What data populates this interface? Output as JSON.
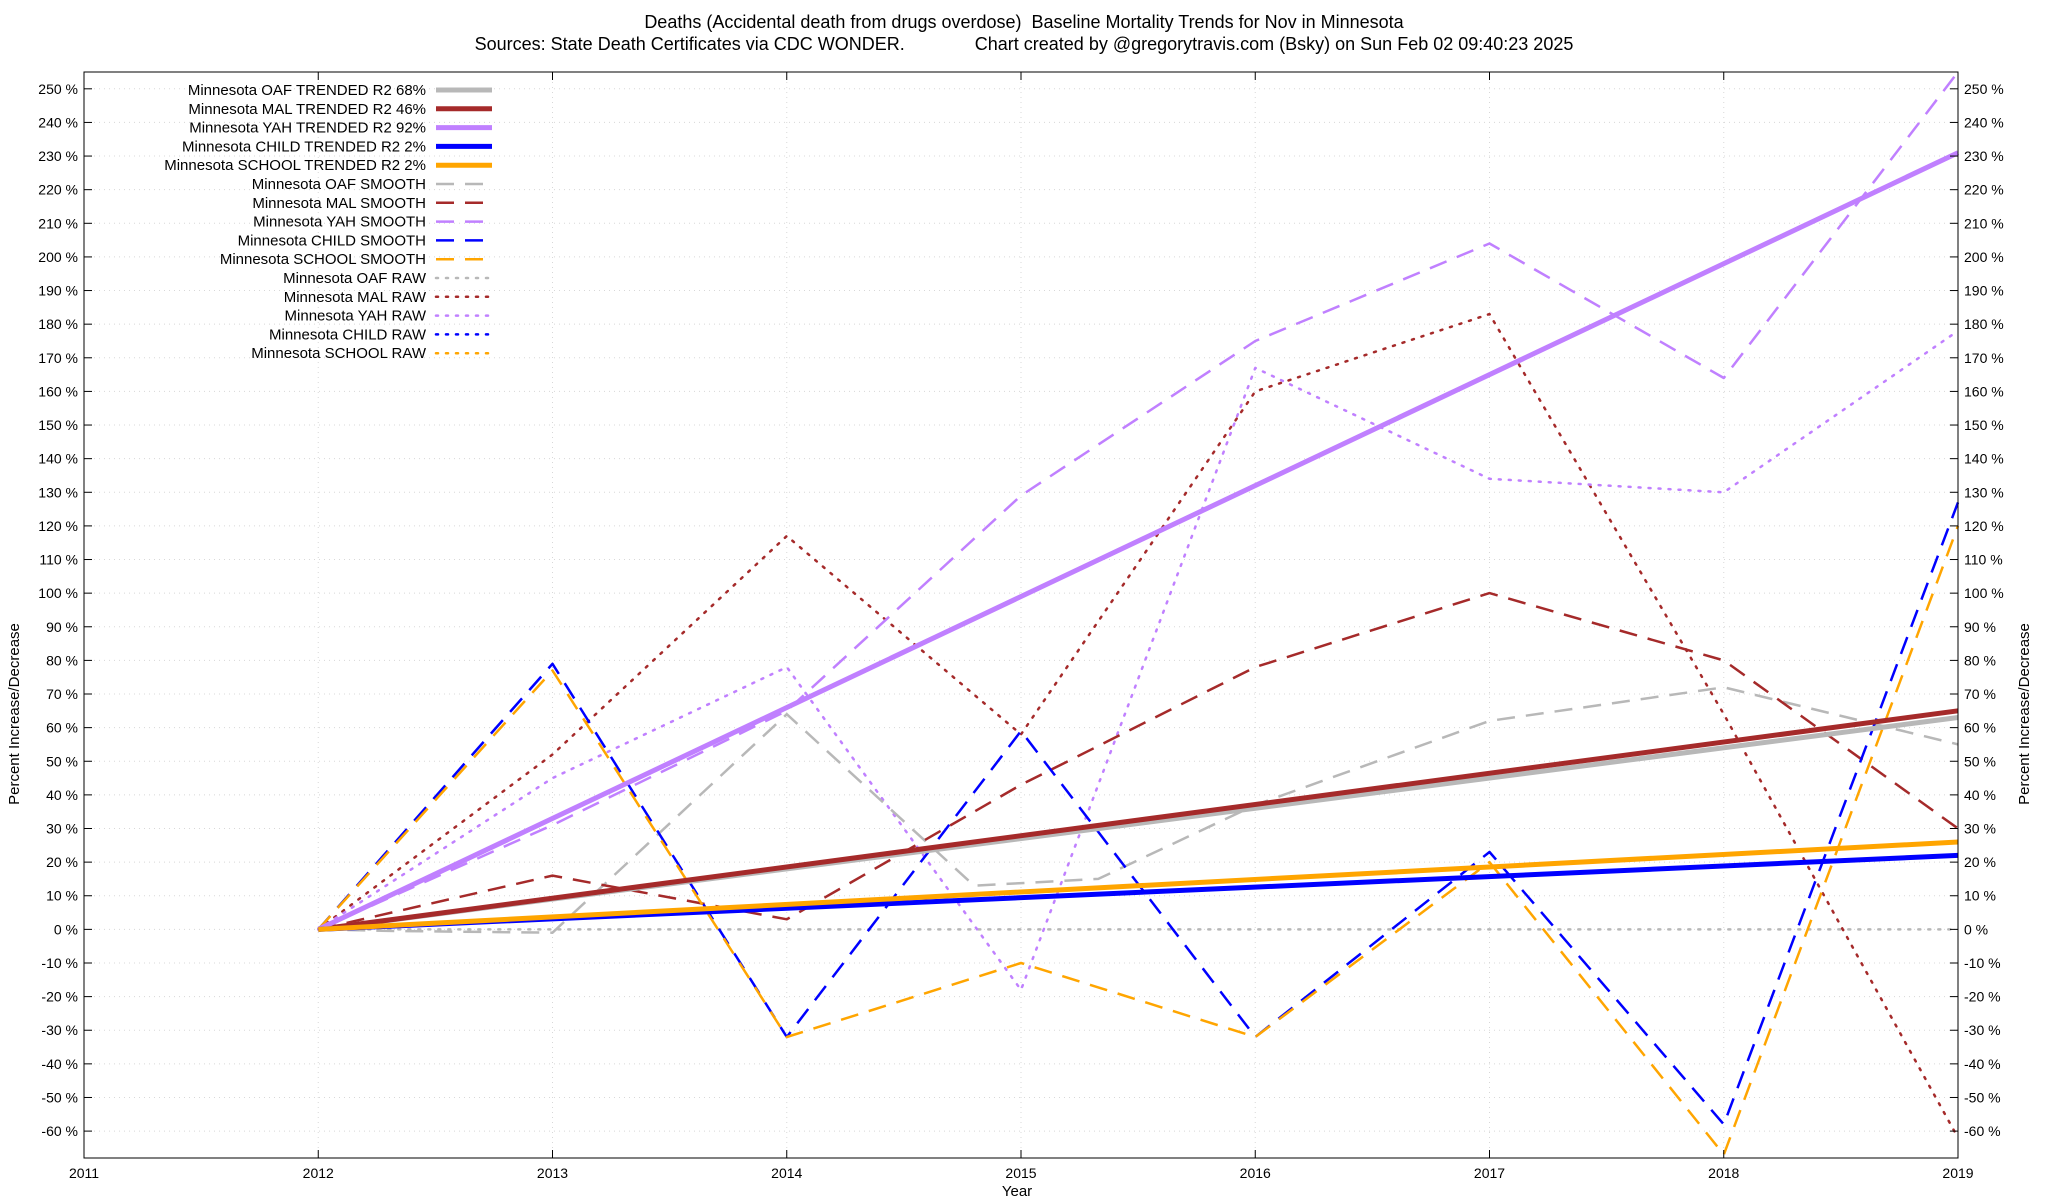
{
  "chart_data": {
    "type": "line",
    "title": "Deaths (Accidental death from drugs overdose)  Baseline Mortality Trends for Nov in Minnesota",
    "subtitle": "Sources: State Death Certificates via CDC WONDER.              Chart created by @gregorytravis.com (Bsky) on Sun Feb 02 09:40:23 2025",
    "xlabel": "Year",
    "ylabel": "Percent Increase/Decrease",
    "y2label": "Percent Increase/Decrease",
    "xlim": [
      2011,
      2019
    ],
    "ylim": [
      -68,
      255
    ],
    "x_ticks": [
      "2011",
      "2012",
      "2013",
      "2014",
      "2015",
      "2016",
      "2017",
      "2018",
      "2019"
    ],
    "y_ticks": [
      "-60 %",
      "-50 %",
      "-40 %",
      "-30 %",
      "-20 %",
      "-10 %",
      "0 %",
      "10 %",
      "20 %",
      "30 %",
      "40 %",
      "50 %",
      "60 %",
      "70 %",
      "80 %",
      "90 %",
      "100 %",
      "110 %",
      "120 %",
      "130 %",
      "140 %",
      "150 %",
      "160 %",
      "170 %",
      "180 %",
      "190 %",
      "200 %",
      "210 %",
      "220 %",
      "230 %",
      "240 %",
      "250 %"
    ],
    "grid": true,
    "legend_position": "top-left",
    "series": [
      {
        "name": "Minnesota OAF TRENDED R2  68%",
        "style": "trend",
        "color": "#b8b8b8",
        "x": [
          2012,
          2019
        ],
        "y": [
          0,
          63
        ]
      },
      {
        "name": "Minnesota MAL TRENDED R2  46%",
        "style": "trend",
        "color": "#a52a2a",
        "x": [
          2012,
          2019
        ],
        "y": [
          0,
          65
        ]
      },
      {
        "name": "Minnesota YAH TRENDED R2  92%",
        "style": "trend",
        "color": "#c080ff",
        "x": [
          2012,
          2019
        ],
        "y": [
          0,
          231
        ]
      },
      {
        "name": "Minnesota CHILD TRENDED R2   2%",
        "style": "trend",
        "color": "#0000ff",
        "x": [
          2012,
          2019
        ],
        "y": [
          0,
          22
        ]
      },
      {
        "name": "Minnesota SCHOOL TRENDED R2   2%",
        "style": "trend",
        "color": "#ffa500",
        "x": [
          2012,
          2019
        ],
        "y": [
          0,
          26
        ]
      },
      {
        "name": "Minnesota OAF SMOOTH",
        "style": "smooth",
        "color": "#b8b8b8",
        "x": [
          2012,
          2012.33,
          2013,
          2014,
          2014.8,
          2015.33,
          2016,
          2017,
          2018,
          2019
        ],
        "y": [
          0,
          -0.5,
          -1,
          64,
          13,
          15,
          37,
          62,
          72,
          55
        ]
      },
      {
        "name": "Minnesota MAL SMOOTH",
        "style": "smooth",
        "color": "#a52a2a",
        "x": [
          2012,
          2013,
          2014,
          2015,
          2016,
          2017,
          2018,
          2019
        ],
        "y": [
          0,
          16,
          3,
          43,
          78,
          100,
          80,
          30
        ]
      },
      {
        "name": "Minnesota YAH SMOOTH",
        "style": "smooth",
        "color": "#c080ff",
        "x": [
          2012,
          2013,
          2014,
          2015,
          2016,
          2017,
          2018,
          2019
        ],
        "y": [
          0,
          31,
          65,
          129,
          175,
          204,
          164,
          255
        ]
      },
      {
        "name": "Minnesota CHILD SMOOTH",
        "style": "smooth",
        "color": "#0000ff",
        "x": [
          2012,
          2013,
          2014,
          2015,
          2016,
          2017,
          2018,
          2019
        ],
        "y": [
          0,
          79,
          -32,
          59,
          -32,
          23,
          -58,
          127
        ]
      },
      {
        "name": "Minnesota SCHOOL SMOOTH",
        "style": "smooth",
        "color": "#ffa500",
        "x": [
          2012,
          2013,
          2014,
          2015,
          2016,
          2017,
          2018,
          2019
        ],
        "y": [
          0,
          77,
          -32,
          -10,
          -32,
          20,
          -67,
          120
        ]
      },
      {
        "name": "Minnesota OAF RAW",
        "style": "raw",
        "color": "#b8b8b8",
        "x": [
          2012,
          2019
        ],
        "y": [
          0,
          0
        ]
      },
      {
        "name": "Minnesota MAL RAW",
        "style": "raw",
        "color": "#a52a2a",
        "x": [
          2012,
          2013,
          2014,
          2015,
          2016,
          2017,
          2018,
          2019
        ],
        "y": [
          0,
          52,
          117,
          58,
          160,
          183,
          64,
          -62
        ]
      },
      {
        "name": "Minnesota YAH RAW",
        "style": "raw",
        "color": "#c080ff",
        "x": [
          2012,
          2013,
          2014,
          2015,
          2016,
          2017,
          2018,
          2019
        ],
        "y": [
          0,
          45,
          78,
          -18,
          167,
          134,
          130,
          178
        ]
      },
      {
        "name": "Minnesota CHILD RAW",
        "style": "raw",
        "color": "#0000ff",
        "x": [],
        "y": []
      },
      {
        "name": "Minnesota SCHOOL RAW",
        "style": "raw",
        "color": "#ffa500",
        "x": [],
        "y": []
      }
    ]
  }
}
